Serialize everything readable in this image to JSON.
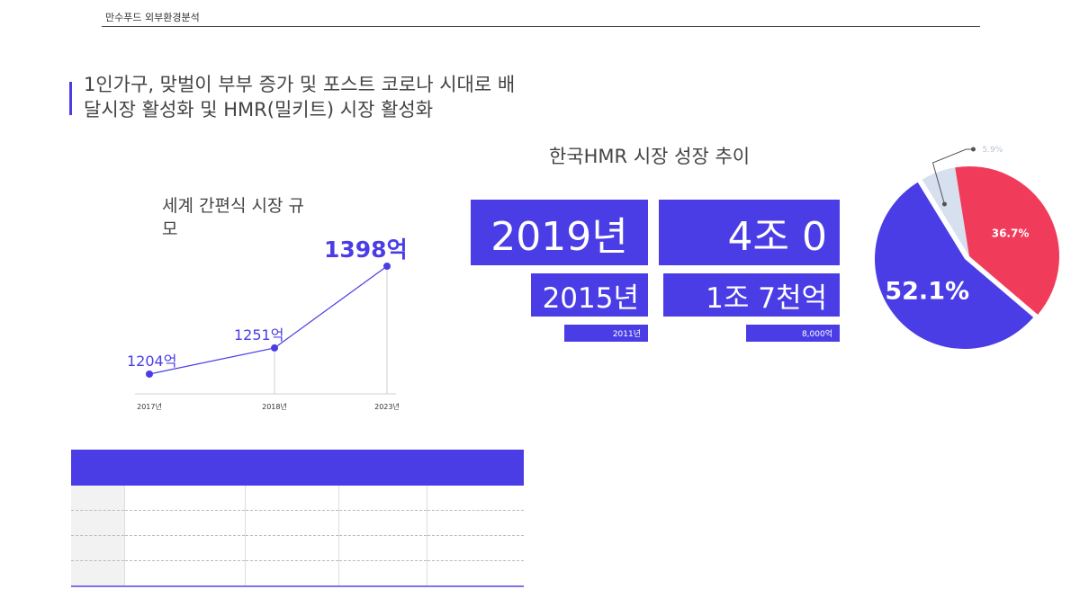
{
  "header": {
    "company": "만수푸드 외부환경분석"
  },
  "headline": {
    "text": "1인가구, 맞벌이 부부 증가 및 포스트 코로나 시대로 배달시장 활성화 및 HMR(밀키트) 시장 활성화"
  },
  "line_chart": {
    "title_line1": "세계 간편식 시장 규",
    "title_line2": "모"
  },
  "hmr": {
    "title": "한국HMR 시장 성장 추이",
    "year_2019": "2019년",
    "value_2019": "4조 0",
    "year_2015": "2015년",
    "value_2015": "1조 7천억",
    "year_2011": "2011년",
    "value_2011": "8,000억"
  },
  "colors": {
    "accent": "#4b3de6",
    "pie_red": "#f03c5a",
    "pie_light": "#d6e0ee",
    "line": "#4b3de6"
  },
  "chart_data": [
    {
      "type": "line",
      "title": "세계 간편식 시장 규모",
      "categories": [
        "2017년",
        "2018년",
        "2023년"
      ],
      "values": [
        1204,
        1251,
        1398
      ],
      "labels": [
        "1204억",
        "1251억",
        "1398억"
      ],
      "ylabel": "",
      "xlabel": ""
    },
    {
      "type": "pie",
      "slices": [
        {
          "label": "52.1%",
          "value": 52.1,
          "color": "#4b3de6"
        },
        {
          "label": "36.7%",
          "value": 36.7,
          "color": "#f03c5a"
        },
        {
          "label": "5.9%",
          "value": 5.9,
          "color": "#d6e0ee"
        }
      ]
    }
  ],
  "table": {
    "columns": [
      "",
      "",
      "",
      "",
      ""
    ],
    "rows": [
      [
        "",
        "",
        "",
        "",
        ""
      ],
      [
        "",
        "",
        "",
        "",
        ""
      ],
      [
        "",
        "",
        "",
        "",
        ""
      ],
      [
        "",
        "",
        "",
        "",
        ""
      ]
    ]
  }
}
